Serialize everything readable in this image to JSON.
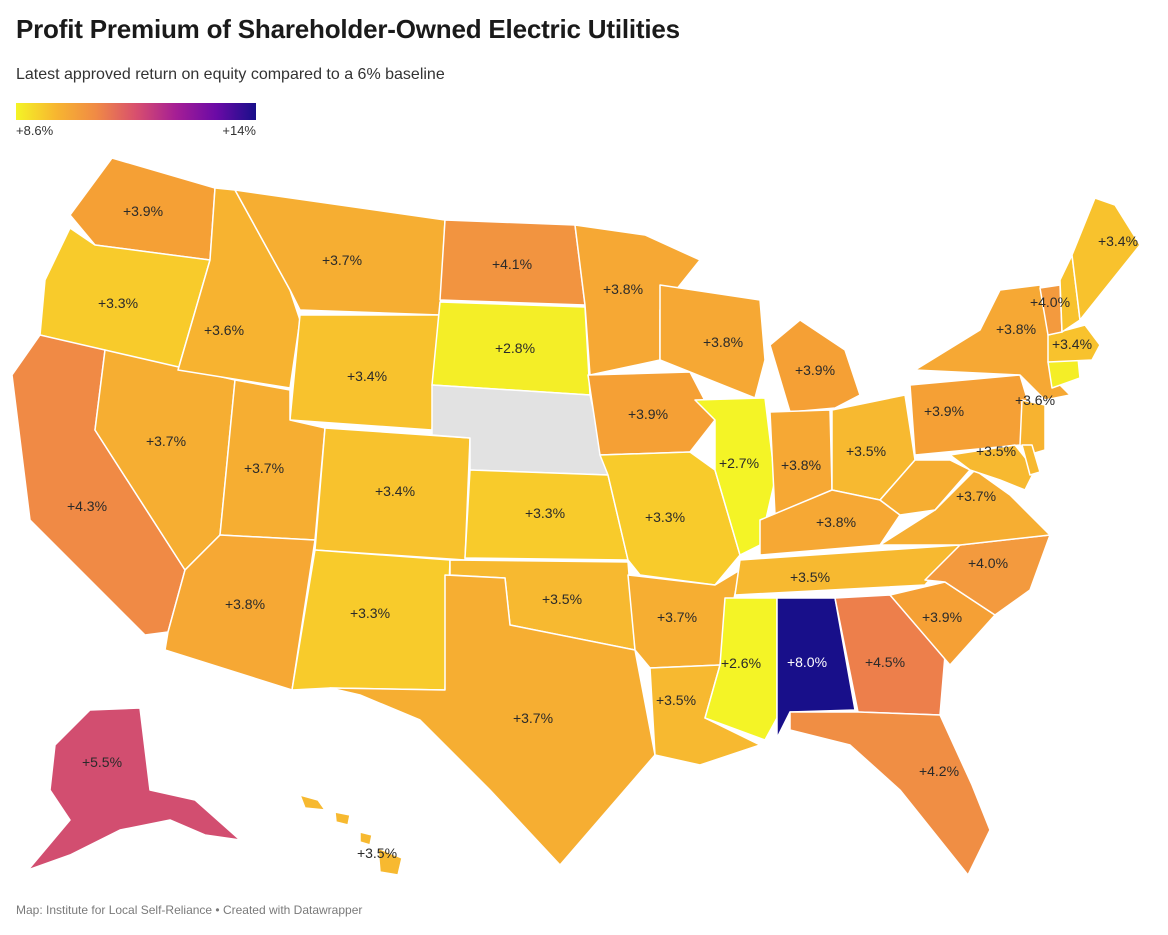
{
  "title": "Profit Premium of Shareholder-Owned Electric Utilities",
  "subtitle": "Latest approved return on equity compared to a 6% baseline",
  "legend": {
    "min_label": "+8.6%",
    "max_label": "+14%"
  },
  "colors": {
    "scale_low": "#f4f426",
    "scale_mid": "#f7b630",
    "scale_high": "#180f8a",
    "no_data": "#e2e2e2",
    "border": "#ffffff"
  },
  "footer": "Map: Institute for Local Self-Reliance • Created with Datawrapper",
  "states": [
    {
      "id": "wa",
      "label": "+3.9%",
      "color": "#f5a035"
    },
    {
      "id": "or",
      "label": "+3.3%",
      "color": "#f8cb2b"
    },
    {
      "id": "ca",
      "label": "+4.3%",
      "color": "#f08a45"
    },
    {
      "id": "nv",
      "label": "+3.7%",
      "color": "#f6ae32"
    },
    {
      "id": "id",
      "label": "+3.6%",
      "color": "#f7b330"
    },
    {
      "id": "mt",
      "label": "+3.7%",
      "color": "#f6ae32"
    },
    {
      "id": "wy",
      "label": "+3.4%",
      "color": "#f8c22d"
    },
    {
      "id": "ut",
      "label": "+3.7%",
      "color": "#f6ae32"
    },
    {
      "id": "az",
      "label": "+3.8%",
      "color": "#f6a834"
    },
    {
      "id": "co",
      "label": "+3.4%",
      "color": "#f8c22d"
    },
    {
      "id": "nm",
      "label": "+3.3%",
      "color": "#f8cb2b"
    },
    {
      "id": "nd",
      "label": "+4.1%",
      "color": "#f29440"
    },
    {
      "id": "sd",
      "label": "+2.8%",
      "color": "#f4ee27"
    },
    {
      "id": "ne",
      "label": "",
      "color": "#e2e2e2"
    },
    {
      "id": "ks",
      "label": "+3.3%",
      "color": "#f8cb2b"
    },
    {
      "id": "ok",
      "label": "+3.5%",
      "color": "#f7b930"
    },
    {
      "id": "tx",
      "label": "+3.7%",
      "color": "#f6ae32"
    },
    {
      "id": "mn",
      "label": "+3.8%",
      "color": "#f6a834"
    },
    {
      "id": "ia",
      "label": "+3.9%",
      "color": "#f5a035"
    },
    {
      "id": "mo",
      "label": "+3.3%",
      "color": "#f8cb2b"
    },
    {
      "id": "ar",
      "label": "+3.7%",
      "color": "#f6ae32"
    },
    {
      "id": "la",
      "label": "+3.5%",
      "color": "#f7b930"
    },
    {
      "id": "wi",
      "label": "+3.8%",
      "color": "#f6a834"
    },
    {
      "id": "il",
      "label": "+2.7%",
      "color": "#f4f426"
    },
    {
      "id": "mi",
      "label": "+3.9%",
      "color": "#f5a035"
    },
    {
      "id": "in",
      "label": "+3.8%",
      "color": "#f6a834"
    },
    {
      "id": "oh",
      "label": "+3.5%",
      "color": "#f7b930"
    },
    {
      "id": "ky",
      "label": "+3.8%",
      "color": "#f6a834"
    },
    {
      "id": "tn",
      "label": "+3.5%",
      "color": "#f7b930"
    },
    {
      "id": "ms",
      "label": "+2.6%",
      "color": "#f4f426"
    },
    {
      "id": "al",
      "label": "+8.0%",
      "color": "#180f8a"
    },
    {
      "id": "ga",
      "label": "+4.5%",
      "color": "#ed7f4b"
    },
    {
      "id": "fl",
      "label": "+4.2%",
      "color": "#f08e44"
    },
    {
      "id": "sc",
      "label": "+3.9%",
      "color": "#f5a035"
    },
    {
      "id": "nc",
      "label": "+4.0%",
      "color": "#f39a3e"
    },
    {
      "id": "va",
      "label": "+3.7%",
      "color": "#f6ae32"
    },
    {
      "id": "wv",
      "label": "",
      "color": "#f6ae32"
    },
    {
      "id": "pa",
      "label": "+3.9%",
      "color": "#f5a035"
    },
    {
      "id": "ny",
      "label": "+3.8%",
      "color": "#f6a834"
    },
    {
      "id": "nj",
      "label": "+3.6%",
      "color": "#f7b330"
    },
    {
      "id": "md",
      "label": "+3.5%",
      "color": "#f7b930"
    },
    {
      "id": "de",
      "label": "",
      "color": "#f7b930"
    },
    {
      "id": "ct",
      "label": "",
      "color": "#f4ee27"
    },
    {
      "id": "ma",
      "label": "+3.4%",
      "color": "#f8c22d"
    },
    {
      "id": "vt",
      "label": "+4.0%",
      "color": "#f39a3e"
    },
    {
      "id": "nh",
      "label": "",
      "color": "#f8c22d"
    },
    {
      "id": "me",
      "label": "+3.4%",
      "color": "#f8c22d"
    },
    {
      "id": "ak",
      "label": "+5.5%",
      "color": "#d24e70"
    },
    {
      "id": "hi",
      "label": "+3.5%",
      "color": "#f7b930"
    }
  ]
}
